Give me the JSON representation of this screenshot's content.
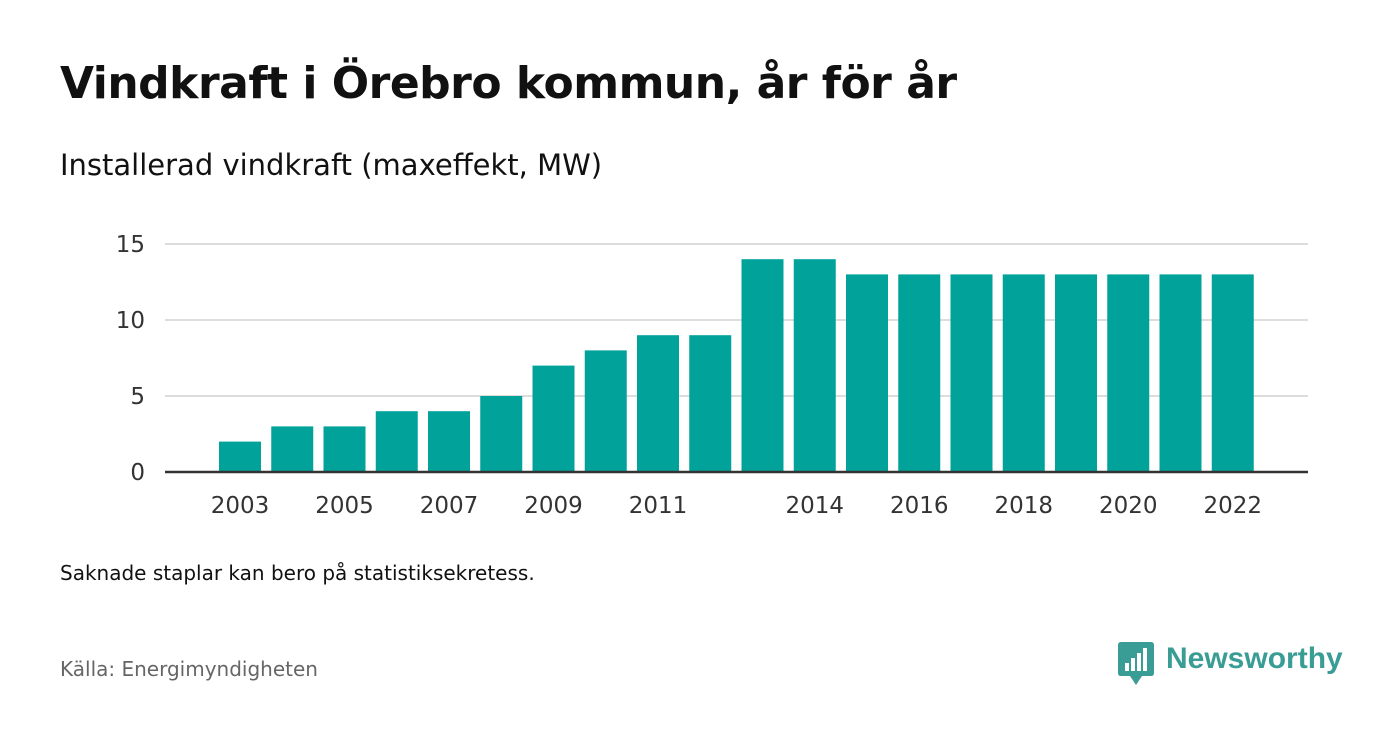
{
  "title": "Vindkraft i Örebro kommun, år för år",
  "subtitle": "Installerad vindkraft (maxeffekt, MW)",
  "note": "Saknade staplar kan bero på statistiksekretess.",
  "source": "Källa: Energimyndigheten",
  "brand": {
    "name": "Newsworthy",
    "color": "#3a9d95",
    "icon": "newsworthy-logo-icon"
  },
  "chart_data": {
    "type": "bar",
    "categories": [
      "2003",
      "2004",
      "2005",
      "2006",
      "2007",
      "2008",
      "2009",
      "2010",
      "2011",
      "2012",
      "2013",
      "2014",
      "2015",
      "2016",
      "2017",
      "2018",
      "2019",
      "2020",
      "2021",
      "2022"
    ],
    "values": [
      2,
      3,
      3,
      4,
      4,
      5,
      7,
      8,
      9,
      9,
      14,
      14,
      13,
      13,
      13,
      13,
      13,
      13,
      13,
      13
    ],
    "x_tick_labels": [
      "2003",
      "2005",
      "2007",
      "2009",
      "2011",
      "2014",
      "2016",
      "2018",
      "2020",
      "2022"
    ],
    "y_ticks": [
      0,
      5,
      10,
      15
    ],
    "ylim": [
      0,
      15
    ],
    "bar_color": "#00a29a",
    "grid": true,
    "title": "",
    "xlabel": "",
    "ylabel": ""
  }
}
